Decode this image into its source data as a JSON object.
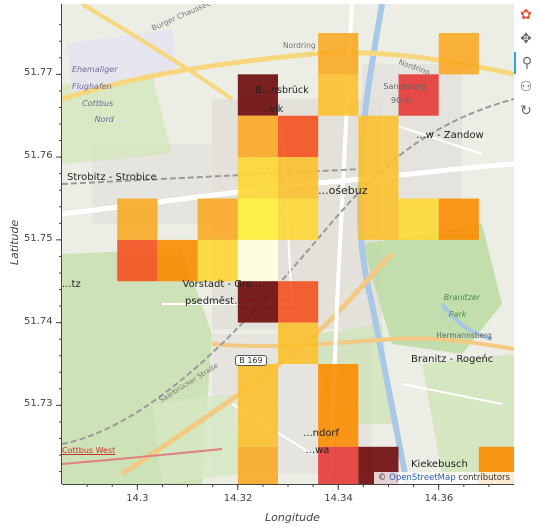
{
  "chart_data": {
    "type": "heatmap",
    "xlabel": "Longitude",
    "ylabel": "Latitude",
    "xlim": [
      14.285,
      14.375
    ],
    "ylim": [
      51.7205,
      51.7785
    ],
    "x_ticks": [
      14.3,
      14.32,
      14.34,
      14.36
    ],
    "x_tick_labels": [
      "14.3",
      "14.32",
      "14.34",
      "14.36"
    ],
    "y_ticks": [
      51.73,
      51.74,
      51.75,
      51.76,
      51.77
    ],
    "y_tick_labels": [
      "51.73",
      "51.74",
      "51.75",
      "51.76",
      "51.77"
    ],
    "cell_size": [
      0.008,
      0.005
    ],
    "colormap": [
      "#ffffe0",
      "#ffffa0",
      "#fff23a",
      "#fdd835",
      "#fbc02d",
      "#f9a825",
      "#fb8c00",
      "#f4511e",
      "#e53935",
      "#b71c1c",
      "#6d0a0a"
    ],
    "cells": [
      {
        "x": 14.3,
        "y": 51.7525,
        "v": 0.48
      },
      {
        "x": 14.3,
        "y": 51.7475,
        "v": 0.72
      },
      {
        "x": 14.308,
        "y": 51.7475,
        "v": 0.62
      },
      {
        "x": 14.316,
        "y": 51.7525,
        "v": 0.52
      },
      {
        "x": 14.316,
        "y": 51.7475,
        "v": 0.25
      },
      {
        "x": 14.324,
        "y": 51.7675,
        "v": 1.0
      },
      {
        "x": 14.324,
        "y": 51.7625,
        "v": 0.52
      },
      {
        "x": 14.324,
        "y": 51.7575,
        "v": 0.32
      },
      {
        "x": 14.324,
        "y": 51.7525,
        "v": 0.15
      },
      {
        "x": 14.324,
        "y": 51.7475,
        "v": 0.02
      },
      {
        "x": 14.324,
        "y": 51.7425,
        "v": 1.0
      },
      {
        "x": 14.324,
        "y": 51.7325,
        "v": 0.38
      },
      {
        "x": 14.324,
        "y": 51.7275,
        "v": 0.35
      },
      {
        "x": 14.324,
        "y": 51.7225,
        "v": 0.45
      },
      {
        "x": 14.332,
        "y": 51.7625,
        "v": 0.72
      },
      {
        "x": 14.332,
        "y": 51.7575,
        "v": 0.35
      },
      {
        "x": 14.332,
        "y": 51.7525,
        "v": 0.28
      },
      {
        "x": 14.332,
        "y": 51.7425,
        "v": 0.72
      },
      {
        "x": 14.332,
        "y": 51.7375,
        "v": 0.38
      },
      {
        "x": 14.34,
        "y": 51.7725,
        "v": 0.52
      },
      {
        "x": 14.34,
        "y": 51.7675,
        "v": 0.36
      },
      {
        "x": 14.34,
        "y": 51.7325,
        "v": 0.55
      },
      {
        "x": 14.34,
        "y": 51.7275,
        "v": 0.55
      },
      {
        "x": 14.34,
        "y": 51.7225,
        "v": 0.8
      },
      {
        "x": 14.348,
        "y": 51.7625,
        "v": 0.42
      },
      {
        "x": 14.348,
        "y": 51.7575,
        "v": 0.42
      },
      {
        "x": 14.348,
        "y": 51.7525,
        "v": 0.42
      },
      {
        "x": 14.348,
        "y": 51.7225,
        "v": 1.0
      },
      {
        "x": 14.356,
        "y": 51.7675,
        "v": 0.8
      },
      {
        "x": 14.356,
        "y": 51.7525,
        "v": 0.32
      },
      {
        "x": 14.364,
        "y": 51.7725,
        "v": 0.48
      },
      {
        "x": 14.364,
        "y": 51.7525,
        "v": 0.55
      },
      {
        "x": 14.372,
        "y": 51.7225,
        "v": 0.55
      }
    ]
  },
  "map": {
    "labels": [
      {
        "id": "burger-chaussee",
        "text": "Burger Chaussee",
        "lon": 14.303,
        "lat": 51.7755,
        "size": 7.5,
        "color": "#777",
        "rotate": -24
      },
      {
        "id": "ehemaliger",
        "text": "Ehemaliger",
        "lon": 14.287,
        "lat": 51.7705,
        "size": 8,
        "color": "#6b6b9a",
        "italic": true
      },
      {
        "id": "flughafen",
        "text": "Flughafen",
        "lon": 14.287,
        "lat": 51.7685,
        "size": 8,
        "color": "#6b6b9a",
        "italic": true
      },
      {
        "id": "cottbus",
        "text": "Cottbus",
        "lon": 14.289,
        "lat": 51.7665,
        "size": 8,
        "color": "#6b6b9a",
        "italic": true
      },
      {
        "id": "nord",
        "text": "Nord",
        "lon": 14.2915,
        "lat": 51.7645,
        "size": 8,
        "color": "#6b6b9a",
        "italic": true
      },
      {
        "id": "nordring",
        "text": "Nordring",
        "lon": 14.329,
        "lat": 51.7735,
        "size": 7.5,
        "color": "#777"
      },
      {
        "id": "nordring-2",
        "text": "Nordring",
        "lon": 14.352,
        "lat": 51.7715,
        "size": 7.5,
        "color": "#777",
        "rotate": 20
      },
      {
        "id": "sanzeberg",
        "text": "Sanzeberg",
        "lon": 14.349,
        "lat": 51.7685,
        "size": 8,
        "color": "#666"
      },
      {
        "id": "sanzeberg-alt",
        "text": "90 m",
        "lon": 14.3505,
        "lat": 51.7668,
        "size": 8,
        "color": "#666"
      },
      {
        "id": "branitz-district",
        "text": "B...nsbrück",
        "lon": 14.3235,
        "lat": 51.768,
        "size": 9.5,
        "color": "#222"
      },
      {
        "id": "branitz-district-2",
        "text": "...vik",
        "lon": 14.3245,
        "lat": 51.7657,
        "size": 9.5,
        "color": "#222"
      },
      {
        "id": "zandow",
        "text": "...w - Zandow",
        "lon": 14.3555,
        "lat": 51.7625,
        "size": 10,
        "color": "#222"
      },
      {
        "id": "strobitz",
        "text": "Strobitz - Strobice",
        "lon": 14.286,
        "lat": 51.7575,
        "size": 10,
        "color": "#222"
      },
      {
        "id": "cottbus-center",
        "text": "...ośebuz",
        "lon": 14.336,
        "lat": 51.756,
        "size": 11,
        "color": "#222"
      },
      {
        "id": "vorstadt",
        "text": "Vorstadt - Gro...",
        "lon": 14.309,
        "lat": 51.7445,
        "size": 10,
        "color": "#222"
      },
      {
        "id": "vorstadt-2",
        "text": "psedměst...",
        "lon": 14.3095,
        "lat": 51.7425,
        "size": 10,
        "color": "#222"
      },
      {
        "id": "branitzer-park",
        "text": "Branitzer",
        "lon": 14.361,
        "lat": 51.743,
        "size": 8,
        "color": "#4a8a4a",
        "italic": true
      },
      {
        "id": "branitzer-park-2",
        "text": "Park",
        "lon": 14.362,
        "lat": 51.741,
        "size": 8,
        "color": "#4a8a4a",
        "italic": true
      },
      {
        "id": "hermannsberg",
        "text": "Hermannsberg",
        "lon": 14.3595,
        "lat": 51.7385,
        "size": 7.5,
        "color": "#666"
      },
      {
        "id": "branitz",
        "text": "Branitz - Rogeńc",
        "lon": 14.3545,
        "lat": 51.7355,
        "size": 10,
        "color": "#222"
      },
      {
        "id": "b169",
        "text": "B 169",
        "lon": 14.3195,
        "lat": 51.7355,
        "size": 8,
        "color": "#333",
        "shield": true
      },
      {
        "id": "saarbruecker",
        "text": "Saarbrücker Straße",
        "lon": 14.3045,
        "lat": 51.7305,
        "size": 7,
        "color": "#777",
        "rotate": -32
      },
      {
        "id": "sandorf",
        "text": "...ndorf",
        "lon": 14.333,
        "lat": 51.7265,
        "size": 10,
        "color": "#222"
      },
      {
        "id": "sandorf-2",
        "text": "...wa",
        "lon": 14.3335,
        "lat": 51.7245,
        "size": 10,
        "color": "#222"
      },
      {
        "id": "cottbus-west",
        "text": "Cottbus West",
        "lon": 14.285,
        "lat": 51.7245,
        "size": 8,
        "color": "#c0392b",
        "underline": true
      },
      {
        "id": "kiekebusch",
        "text": "Kiekebusch",
        "lon": 14.3545,
        "lat": 51.7228,
        "size": 10,
        "color": "#222"
      },
      {
        "id": "ritz",
        "text": "...tz",
        "lon": 14.285,
        "lat": 51.7445,
        "size": 10,
        "color": "#222"
      }
    ],
    "attribution_prefix": "© ",
    "attribution_link": "OpenStreetMap",
    "attribution_suffix": " contributors"
  },
  "toolbar": {
    "tools": [
      {
        "name": "bokeh-logo-icon",
        "glyph": "✿",
        "active": false
      },
      {
        "name": "pan-icon",
        "glyph": "✥",
        "active": false
      },
      {
        "name": "box-zoom-icon",
        "glyph": "⚲",
        "active": true
      },
      {
        "name": "wheel-zoom-icon",
        "glyph": "⚇",
        "active": false
      },
      {
        "name": "reset-icon",
        "glyph": "↻",
        "active": false
      }
    ]
  }
}
